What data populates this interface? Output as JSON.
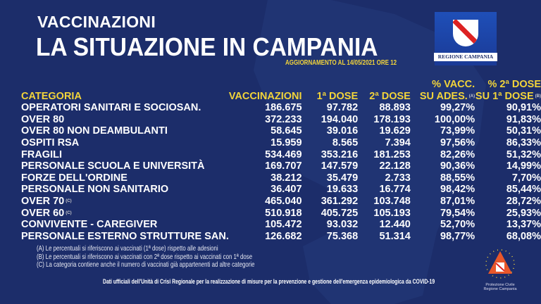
{
  "header": {
    "kicker": "VACCINAZIONI",
    "title": "LA SITUAZIONE IN CAMPANIA",
    "update": "AGGIORNAMENTO AL 14/05/2021 ORE 12"
  },
  "logo": {
    "text": "REGIONE CAMPANIA"
  },
  "table": {
    "headers": {
      "category": "CATEGORIA",
      "vacc": "VACCINAZIONI",
      "d1": "1ª DOSE",
      "d2": "2ª DOSE",
      "pv1": "% VACC.",
      "pv2": "SU ADES.",
      "pv_note": "(A)",
      "p2a": "% 2ª DOSE",
      "p2b": "SU 1ª DOSE",
      "p2_note": "(B)"
    },
    "rows": [
      {
        "cat": "OPERATORI SANITARI E SOCIOSAN.",
        "note": "",
        "v": "186.675",
        "d1": "97.782",
        "d2": "88.893",
        "pv": "99,27%",
        "p2": "90,91%"
      },
      {
        "cat": "OVER 80",
        "note": "",
        "v": "372.233",
        "d1": "194.040",
        "d2": "178.193",
        "pv": "100,00%",
        "p2": "91,83%"
      },
      {
        "cat": "OVER 80 NON DEAMBULANTI",
        "note": "",
        "v": "58.645",
        "d1": "39.016",
        "d2": "19.629",
        "pv": "73,99%",
        "p2": "50,31%"
      },
      {
        "cat": "OSPITI RSA",
        "note": "",
        "v": "15.959",
        "d1": "8.565",
        "d2": "7.394",
        "pv": "97,56%",
        "p2": "86,33%"
      },
      {
        "cat": "FRAGILI",
        "note": "",
        "v": "534.469",
        "d1": "353.216",
        "d2": "181.253",
        "pv": "82,26%",
        "p2": "51,32%"
      },
      {
        "cat": "PERSONALE SCUOLA E UNIVERSITÀ",
        "note": "",
        "v": "169.707",
        "d1": "147.579",
        "d2": "22.128",
        "pv": "90,36%",
        "p2": "14,99%"
      },
      {
        "cat": "FORZE DELL'ORDINE",
        "note": "",
        "v": "38.212",
        "d1": "35.479",
        "d2": "2.733",
        "pv": "88,55%",
        "p2": "7,70%"
      },
      {
        "cat": "PERSONALE NON SANITARIO",
        "note": "",
        "v": "36.407",
        "d1": "19.633",
        "d2": "16.774",
        "pv": "98,42%",
        "p2": "85,44%"
      },
      {
        "cat": "OVER 70",
        "note": "(C)",
        "v": "465.040",
        "d1": "361.292",
        "d2": "103.748",
        "pv": "87,01%",
        "p2": "28,72%"
      },
      {
        "cat": "OVER 60",
        "note": "(C)",
        "v": "510.918",
        "d1": "405.725",
        "d2": "105.193",
        "pv": "79,54%",
        "p2": "25,93%"
      },
      {
        "cat": "CONVIVENTE - CAREGIVER",
        "note": "",
        "v": "105.472",
        "d1": "93.032",
        "d2": "12.440",
        "pv": "52,70%",
        "p2": "13,37%"
      },
      {
        "cat": "PERSONALE ESTERNO STRUTTURE SAN.",
        "note": "",
        "v": "126.682",
        "d1": "75.368",
        "d2": "51.314",
        "pv": "98,77%",
        "p2": "68,08%"
      }
    ]
  },
  "notes": [
    "(A) Le percentuali si riferiscono ai vaccinati (1ª dose) rispetto alle adesioni",
    "(B) Le percentuali si riferiscono ai vaccinati con 2ª dose rispetto ai vaccinati con 1ª dose",
    "(C) La categoria contiene anche il numero di vaccinati già appartenenti ad altre categorie"
  ],
  "source": "Dati ufficiali dell'Unità di Crisi Regionale per la realizzazione di misure per la prevenzione e gestione dell'emergenza epidemiologica da COVID-19",
  "protezione": {
    "line1": "Protezione Civile",
    "line2": "Regione Campania"
  },
  "colors": {
    "background": "#1c2d6a",
    "accent": "#f2d43a"
  }
}
